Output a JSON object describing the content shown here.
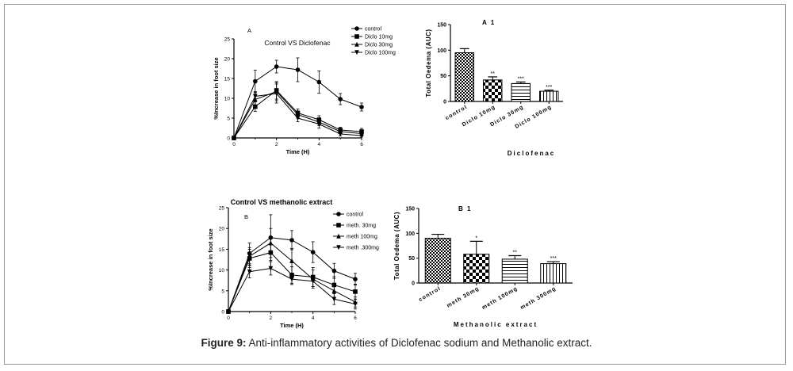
{
  "figure": {
    "caption_label": "Figure 9:",
    "caption_text": " Anti-inflammatory activities of Diclofenac sodium and Methanolic extract."
  },
  "chart_data": [
    {
      "id": "A",
      "type": "line",
      "panel_label": "A",
      "title": "Control VS Diclofenac",
      "xlabel": "Time (H)",
      "ylabel": "%Increase in foot size",
      "xlim": [
        0,
        6
      ],
      "ylim": [
        0,
        25
      ],
      "xticks": [
        0,
        2,
        4,
        6
      ],
      "yticks": [
        0,
        5,
        10,
        15,
        20,
        25
      ],
      "legend_position": "top-right",
      "x": [
        0,
        1,
        2,
        3,
        4,
        5,
        6
      ],
      "series": [
        {
          "name": "control",
          "marker": "circle",
          "values": [
            0,
            14.3,
            18.0,
            17.2,
            14.1,
            9.8,
            7.8
          ],
          "errors": [
            0,
            2.8,
            1.6,
            3.0,
            2.8,
            1.4,
            1.0
          ]
        },
        {
          "name": "Diclo 10mg",
          "marker": "square",
          "values": [
            0,
            7.9,
            12.0,
            6.3,
            4.6,
            2.0,
            1.6
          ],
          "errors": [
            0,
            1.2,
            2.2,
            1.0,
            1.0,
            0.7,
            0.8
          ]
        },
        {
          "name": "Diclo 30mg",
          "marker": "triangle-up",
          "values": [
            0,
            9.7,
            11.7,
            5.9,
            4.0,
            1.6,
            1.1
          ],
          "errors": [
            0,
            1.5,
            2.3,
            0.9,
            0.9,
            0.6,
            0.6
          ]
        },
        {
          "name": "Diclo 100mg",
          "marker": "triangle-down",
          "values": [
            0,
            10.5,
            11.2,
            5.0,
            3.5,
            1.0,
            0.6
          ],
          "errors": [
            0,
            1.2,
            2.4,
            0.9,
            1.0,
            0.5,
            0.4
          ]
        }
      ]
    },
    {
      "id": "A1",
      "type": "bar",
      "panel_label": "A 1",
      "xlabel": "Diclofenac",
      "ylabel": "Total Oedema (AUC)",
      "ylim": [
        0,
        150
      ],
      "yticks": [
        0,
        50,
        100,
        150
      ],
      "categories": [
        "control",
        "Diclo 10mg",
        "Diclo 30mg",
        "Diclo 100mg"
      ],
      "values": [
        95,
        42,
        35,
        20
      ],
      "errors": [
        8,
        6,
        3,
        2
      ],
      "significance": [
        "",
        "**",
        "***",
        "***"
      ],
      "patterns": [
        "dots",
        "check",
        "hlines",
        "vlines"
      ]
    },
    {
      "id": "B",
      "type": "line",
      "panel_label": "B",
      "title": "Control VS methanolic extract",
      "xlabel": "Time (H)",
      "ylabel": "%Increase in foot size",
      "xlim": [
        0,
        6
      ],
      "ylim": [
        0,
        25
      ],
      "xticks": [
        0,
        2,
        4,
        6
      ],
      "yticks": [
        0,
        5,
        10,
        15,
        20,
        25
      ],
      "legend_position": "top-right",
      "x": [
        0,
        1,
        2,
        3,
        4,
        5,
        6
      ],
      "series": [
        {
          "name": "control",
          "marker": "circle",
          "values": [
            0,
            14.0,
            17.8,
            17.2,
            14.3,
            9.8,
            7.8
          ],
          "errors": [
            0,
            2.5,
            5.5,
            2.3,
            2.5,
            1.8,
            1.4
          ]
        },
        {
          "name": "meth. 30mg",
          "marker": "square",
          "values": [
            0,
            12.8,
            14.2,
            8.8,
            8.3,
            6.4,
            4.8
          ],
          "errors": [
            0,
            2.2,
            3.6,
            2.0,
            2.3,
            2.0,
            1.8
          ]
        },
        {
          "name": "meth 100mg",
          "marker": "triangle-up",
          "values": [
            0,
            13.3,
            16.5,
            12.2,
            7.8,
            5.0,
            2.3
          ],
          "errors": [
            0,
            2.1,
            3.5,
            3.0,
            2.2,
            1.8,
            1.2
          ]
        },
        {
          "name": "meth .300mg",
          "marker": "triangle-down",
          "values": [
            0,
            9.6,
            10.4,
            7.8,
            7.3,
            3.0,
            1.8
          ],
          "errors": [
            0,
            1.5,
            1.6,
            1.3,
            1.3,
            1.3,
            1.2
          ]
        }
      ]
    },
    {
      "id": "B1",
      "type": "bar",
      "panel_label": "B 1",
      "xlabel": "Methanolic extract",
      "ylabel": "Total Oedema (AUC)",
      "ylim": [
        0,
        150
      ],
      "yticks": [
        0,
        50,
        100,
        150
      ],
      "categories": [
        "control",
        "meth 30mg",
        "meth 100mg",
        "meth 300mg"
      ],
      "values": [
        90,
        58,
        48,
        39
      ],
      "errors": [
        8,
        26,
        7,
        4
      ],
      "significance": [
        "",
        "*",
        "**",
        "***"
      ],
      "patterns": [
        "dots",
        "check",
        "hlines",
        "vlines"
      ]
    }
  ]
}
